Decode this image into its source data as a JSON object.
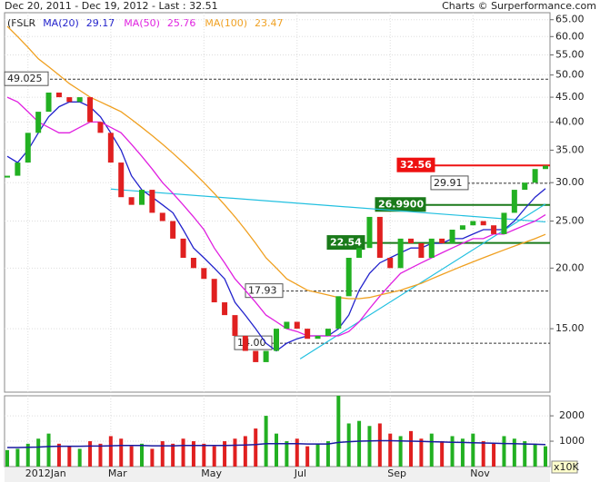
{
  "chart_data": {
    "type": "candlestick",
    "title": "Dec 20, 2011 - Dec 19, 2012 - Last : 32.51",
    "source": "Charts © Surperformance.com",
    "categories": [
      null,
      null,
      "2012Jan",
      null,
      null,
      null,
      null,
      null,
      null,
      null,
      "Mar",
      null,
      null,
      null,
      null,
      null,
      null,
      null,
      null,
      "May",
      null,
      null,
      null,
      null,
      null,
      null,
      null,
      null,
      "Jul",
      null,
      null,
      null,
      null,
      null,
      null,
      null,
      null,
      "Sep",
      null,
      null,
      null,
      null,
      null,
      null,
      null,
      "Nov",
      null,
      null,
      null,
      null,
      null,
      null,
      null
    ],
    "log_scale": true,
    "grid": true,
    "ylim": [
      11.1,
      67.2
    ],
    "yticks": [
      {
        "value": 15,
        "label": "15.00"
      },
      {
        "value": 20,
        "label": "20.00"
      },
      {
        "value": 25,
        "label": "25.00"
      },
      {
        "value": 30,
        "label": "30.00"
      },
      {
        "value": 35,
        "label": "35.00"
      },
      {
        "value": 40,
        "label": "40.00"
      },
      {
        "value": 45,
        "label": "45.00"
      },
      {
        "value": 50,
        "label": "50.00"
      },
      {
        "value": 55,
        "label": "55.00"
      },
      {
        "value": 60,
        "label": "60.00"
      },
      {
        "value": 65,
        "label": "65.00"
      }
    ],
    "series": [
      {
        "name": "(FSLR",
        "up_color": "#22b022",
        "down_color": "#e02020",
        "values": [
          31,
          33,
          38,
          42,
          46,
          45,
          44,
          45,
          40,
          38,
          33,
          28,
          27,
          29,
          26,
          25,
          23,
          21,
          20,
          19,
          17,
          16,
          14.5,
          13.5,
          12.8,
          13.5,
          15,
          15.5,
          15,
          14.3,
          14.5,
          15,
          17.5,
          21,
          22,
          25.5,
          21,
          20,
          23,
          22.5,
          21,
          23,
          22.5,
          24,
          24.5,
          25,
          24.5,
          23.5,
          26,
          29,
          30,
          32,
          32.51
        ]
      },
      {
        "name": "MA(20)",
        "color": "#2222cc",
        "value_label": "29.17",
        "values": [
          34,
          33,
          35,
          38,
          41,
          43,
          44,
          44,
          43,
          41,
          38,
          35,
          31,
          29,
          28,
          27,
          26,
          24,
          22,
          21,
          20,
          19,
          17,
          16,
          15,
          14,
          13.5,
          14,
          14.3,
          14.5,
          14.5,
          14.5,
          15,
          16,
          18,
          19.5,
          20.5,
          21,
          21.5,
          22,
          22,
          22.5,
          22.5,
          23,
          23,
          23.5,
          24,
          24,
          24,
          25,
          26.5,
          28,
          29.17
        ]
      },
      {
        "name": "MA(50)",
        "color": "#e020e0",
        "value_label": "25.76",
        "values": [
          45,
          44,
          42,
          40,
          39,
          38,
          38,
          39,
          40,
          40,
          39,
          38,
          36,
          34,
          32,
          30,
          28.5,
          27,
          25.5,
          24,
          22,
          20.5,
          19,
          18,
          17,
          16,
          15.5,
          15,
          14.8,
          14.5,
          14.5,
          14.5,
          14.5,
          14.8,
          15.5,
          16.5,
          17.5,
          18.5,
          19.5,
          20,
          20.5,
          21,
          21.5,
          22,
          22.5,
          23,
          23,
          23.5,
          23.5,
          24,
          24.5,
          25,
          25.76
        ]
      },
      {
        "name": "MA(100)",
        "color": "#f0a020",
        "value_label": "23.47",
        "values": [
          63,
          60,
          57,
          54,
          52,
          50,
          48,
          46.5,
          45,
          44,
          43,
          42,
          40.5,
          39,
          37.5,
          36,
          34.5,
          33,
          31.5,
          30,
          28.5,
          27,
          25.5,
          24,
          22.5,
          21,
          20,
          19,
          18.5,
          18,
          17.8,
          17.6,
          17.4,
          17.3,
          17.3,
          17.4,
          17.6,
          17.8,
          18,
          18.3,
          18.6,
          19,
          19.4,
          19.8,
          20.2,
          20.6,
          21,
          21.4,
          21.8,
          22.2,
          22.6,
          23,
          23.47
        ]
      }
    ],
    "levels": [
      {
        "value": 49.025,
        "label": "49.025",
        "style": "dashed",
        "color": "#333333"
      },
      {
        "value": 32.56,
        "label": "32.56",
        "style": "solid",
        "color": "#ee1111"
      },
      {
        "value": 29.91,
        "label": "29.91",
        "style": "dashed",
        "color": "#333333"
      },
      {
        "value": 26.99,
        "label": "26.9900",
        "style": "solid",
        "color": "#1a7a1a"
      },
      {
        "value": 22.54,
        "label": "22.54",
        "style": "solid",
        "color": "#1a7a1a"
      },
      {
        "value": 17.93,
        "label": "17.93",
        "style": "dashed",
        "color": "#333333"
      },
      {
        "value": 14,
        "label": "14.00",
        "style": "dashed",
        "color": "#333333"
      }
    ],
    "trendlines": [
      {
        "color": "#22c0e0",
        "from": [
          10,
          29.1
        ],
        "to": [
          52,
          24.9
        ]
      },
      {
        "color": "#22c0e0",
        "from": [
          28.3,
          13
        ],
        "to": [
          52,
          27.1
        ]
      }
    ],
    "volume": {
      "label": "x10K",
      "ylim": [
        0,
        2790
      ],
      "yticks": [
        1000,
        2000
      ],
      "values": [
        650,
        700,
        900,
        1100,
        1300,
        900,
        800,
        700,
        1000,
        900,
        1200,
        1100,
        800,
        900,
        700,
        1000,
        900,
        1100,
        1000,
        900,
        800,
        1000,
        1100,
        1200,
        1500,
        2000,
        1300,
        1000,
        1100,
        800,
        900,
        1000,
        2790,
        1700,
        1800,
        1600,
        1700,
        1300,
        1200,
        1400,
        1100,
        1300,
        1000,
        1200,
        1100,
        1300,
        1000,
        900,
        1200,
        1100,
        1000,
        900,
        800
      ],
      "average": {
        "color": "#1a1aa0",
        "values": [
          750,
          750,
          760,
          770,
          790,
          800,
          800,
          800,
          810,
          810,
          820,
          830,
          830,
          830,
          820,
          820,
          820,
          830,
          830,
          830,
          830,
          830,
          840,
          850,
          870,
          900,
          900,
          900,
          900,
          890,
          890,
          890,
          950,
          980,
          1000,
          1010,
          1020,
          1020,
          1010,
          1000,
          990,
          980,
          970,
          960,
          950,
          940,
          930,
          920,
          910,
          900,
          890,
          880,
          870
        ]
      }
    }
  }
}
